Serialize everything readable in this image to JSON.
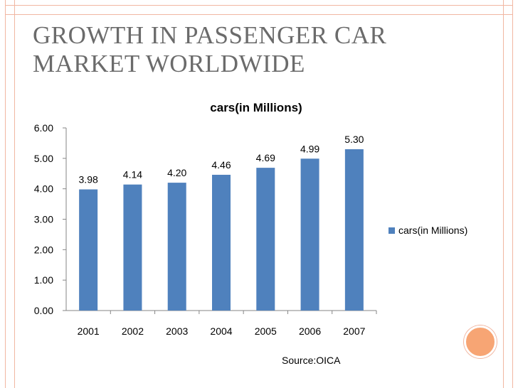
{
  "slide": {
    "title_line1": "GROWTH IN PASSENGER CAR",
    "title_line2": "MARKET WORLDWIDE",
    "source": "Source:OICA",
    "accent_color": "#f7a574",
    "frame_color": "#f1b7a2"
  },
  "chart_data": {
    "type": "bar",
    "title": "cars(in Millions)",
    "categories": [
      "2001",
      "2002",
      "2003",
      "2004",
      "2005",
      "2006",
      "2007"
    ],
    "series": [
      {
        "name": "cars(in Millions)",
        "values": [
          3.98,
          4.14,
          4.2,
          4.46,
          4.69,
          4.99,
          5.3
        ],
        "color": "#4f81bd"
      }
    ],
    "data_labels": [
      "3.98",
      "4.14",
      "4.20",
      "4.46",
      "4.69",
      "4.99",
      "5.30"
    ],
    "yticks": [
      "0.00",
      "1.00",
      "2.00",
      "3.00",
      "4.00",
      "5.00",
      "6.00"
    ],
    "ylim": [
      0,
      6
    ],
    "grid": false,
    "legend_position": "right"
  }
}
